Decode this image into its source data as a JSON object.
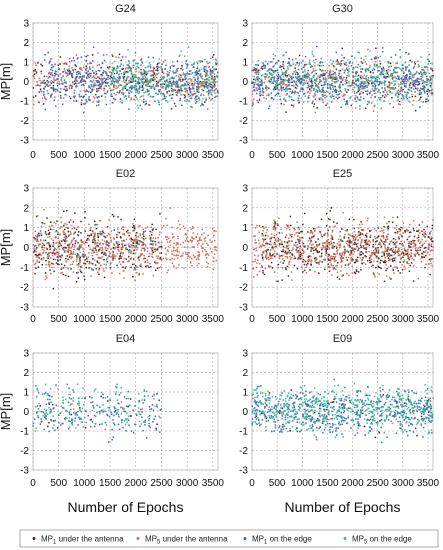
{
  "chart_data": [
    {
      "type": "scatter",
      "title": "G24",
      "ylabel": "MP[m]",
      "xlabel": "",
      "xlim": [
        0,
        3600
      ],
      "ylim": [
        -3,
        3
      ],
      "series": [
        {
          "name_ref": 0,
          "center": 0.1,
          "spread": 0.55,
          "x_range": [
            0,
            3600
          ],
          "count": 260
        },
        {
          "name_ref": 1,
          "center": 0.0,
          "spread": 0.55,
          "x_range": [
            0,
            3600
          ],
          "count": 420
        },
        {
          "name_ref": 2,
          "center": 0.0,
          "spread": 0.6,
          "x_range": [
            200,
            3600
          ],
          "count": 520
        },
        {
          "name_ref": 3,
          "center": 0.1,
          "spread": 0.6,
          "x_range": [
            1500,
            3600
          ],
          "count": 260
        }
      ]
    },
    {
      "type": "scatter",
      "title": "G30",
      "ylabel": "",
      "xlabel": "",
      "xlim": [
        0,
        3600
      ],
      "ylim": [
        -3,
        3
      ],
      "series": [
        {
          "name_ref": 0,
          "center": 0.0,
          "spread": 0.6,
          "x_range": [
            0,
            3600
          ],
          "count": 240
        },
        {
          "name_ref": 1,
          "center": 0.0,
          "spread": 0.6,
          "x_range": [
            0,
            3600
          ],
          "count": 400
        },
        {
          "name_ref": 2,
          "center": 0.0,
          "spread": 0.6,
          "x_range": [
            0,
            3600
          ],
          "count": 550
        },
        {
          "name_ref": 3,
          "center": 0.2,
          "spread": 0.6,
          "x_range": [
            0,
            3600
          ],
          "count": 330
        }
      ]
    },
    {
      "type": "scatter",
      "title": "E02",
      "ylabel": "MP[m]",
      "xlabel": "",
      "xlim": [
        0,
        3600
      ],
      "ylim": [
        -3,
        3
      ],
      "series": [
        {
          "name_ref": 0,
          "center": 0.0,
          "spread": 0.75,
          "x_range": [
            0,
            2500
          ],
          "count": 360
        },
        {
          "name_ref": 1,
          "center": 0.0,
          "spread": 0.65,
          "x_range": [
            0,
            3600
          ],
          "count": 620
        },
        {
          "name_ref": 2,
          "center": 0.0,
          "spread": 0.5,
          "x_range": [
            0,
            2500
          ],
          "count": 40
        },
        {
          "name_ref": 3,
          "center": 0.0,
          "spread": 0.5,
          "x_range": [
            0,
            2500
          ],
          "count": 30
        }
      ]
    },
    {
      "type": "scatter",
      "title": "E25",
      "ylabel": "",
      "xlabel": "",
      "xlim": [
        0,
        3600
      ],
      "ylim": [
        -3,
        3
      ],
      "series": [
        {
          "name_ref": 0,
          "center": 0.0,
          "spread": 0.7,
          "x_range": [
            200,
            3600
          ],
          "count": 520
        },
        {
          "name_ref": 1,
          "center": 0.0,
          "spread": 0.65,
          "x_range": [
            0,
            3600
          ],
          "count": 620
        },
        {
          "name_ref": 2,
          "center": 0.0,
          "spread": 0.5,
          "x_range": [
            500,
            3600
          ],
          "count": 20
        },
        {
          "name_ref": 3,
          "center": 0.0,
          "spread": 0.5,
          "x_range": [
            500,
            3600
          ],
          "count": 15
        }
      ]
    },
    {
      "type": "scatter",
      "title": "E04",
      "ylabel": "MP[m]",
      "xlabel": "Number of Epochs",
      "xlim": [
        0,
        3600
      ],
      "ylim": [
        -3,
        3
      ],
      "series": [
        {
          "name_ref": 0,
          "center": 0.0,
          "spread": 0.5,
          "x_range": [
            0,
            2500
          ],
          "count": 25
        },
        {
          "name_ref": 1,
          "center": 0.0,
          "spread": 0.5,
          "x_range": [
            0,
            2500
          ],
          "count": 15
        },
        {
          "name_ref": 2,
          "center": 0.0,
          "spread": 0.6,
          "x_range": [
            0,
            2500
          ],
          "count": 200
        },
        {
          "name_ref": 3,
          "center": 0.3,
          "spread": 0.55,
          "x_range": [
            0,
            2500
          ],
          "count": 120
        }
      ]
    },
    {
      "type": "scatter",
      "title": "E09",
      "ylabel": "",
      "xlabel": "Number of Epochs",
      "xlim": [
        0,
        3600
      ],
      "ylim": [
        -3,
        3
      ],
      "series": [
        {
          "name_ref": 0,
          "center": 0.0,
          "spread": 0.55,
          "x_range": [
            0,
            3600
          ],
          "count": 60
        },
        {
          "name_ref": 1,
          "center": 0.0,
          "spread": 0.5,
          "x_range": [
            0,
            3600
          ],
          "count": 30
        },
        {
          "name_ref": 2,
          "center": 0.0,
          "spread": 0.6,
          "x_range": [
            0,
            3600
          ],
          "count": 560
        },
        {
          "name_ref": 3,
          "center": 0.15,
          "spread": 0.55,
          "x_range": [
            0,
            3600
          ],
          "count": 460
        }
      ]
    }
  ],
  "shared": {
    "xticks": [
      "0",
      "500",
      "1000",
      "1500",
      "2000",
      "2500",
      "3000",
      "3500"
    ],
    "xtick_values": [
      0,
      500,
      1000,
      1500,
      2000,
      2500,
      3000,
      3500
    ],
    "yticks": [
      "3",
      "2",
      "1",
      "0",
      "-1",
      "-2",
      "-3"
    ],
    "ytick_values": [
      3,
      2,
      1,
      0,
      -1,
      -2,
      -3
    ],
    "grid": true,
    "legend_position": "bottom",
    "series_colors": [
      "#4a2a20",
      "#d86a5a",
      "#2f6fd0",
      "#3fbf8a"
    ]
  },
  "legend": [
    {
      "label": "MP",
      "sub": "1",
      "rest": " under the antenna",
      "color": "#4a2a20"
    },
    {
      "label": "MP",
      "sub": "5",
      "rest": " under the antenna",
      "color": "#d86a5a"
    },
    {
      "label": "MP",
      "sub": "1",
      "rest": " on the edge",
      "color": "#2f6fd0"
    },
    {
      "label": "MP",
      "sub": "5",
      "rest": " on the edge",
      "color": "#3fbf8a"
    }
  ]
}
